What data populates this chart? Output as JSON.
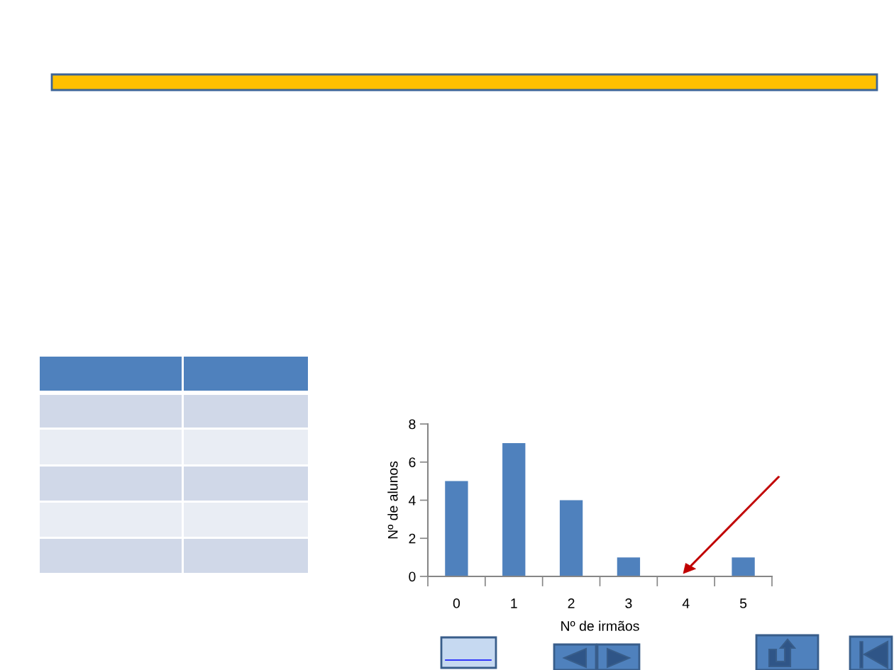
{
  "chart_data": {
    "type": "bar",
    "categories": [
      "0",
      "1",
      "2",
      "3",
      "4",
      "5"
    ],
    "values": [
      5,
      7,
      4,
      1,
      0,
      1
    ],
    "color": "#4f81bd",
    "xlabel": "Nº de irmãos",
    "ylabel": "Nº de alunos",
    "ylim": [
      0,
      8
    ],
    "yticks": [
      0,
      2,
      4,
      6,
      8
    ],
    "grid": false
  }
}
